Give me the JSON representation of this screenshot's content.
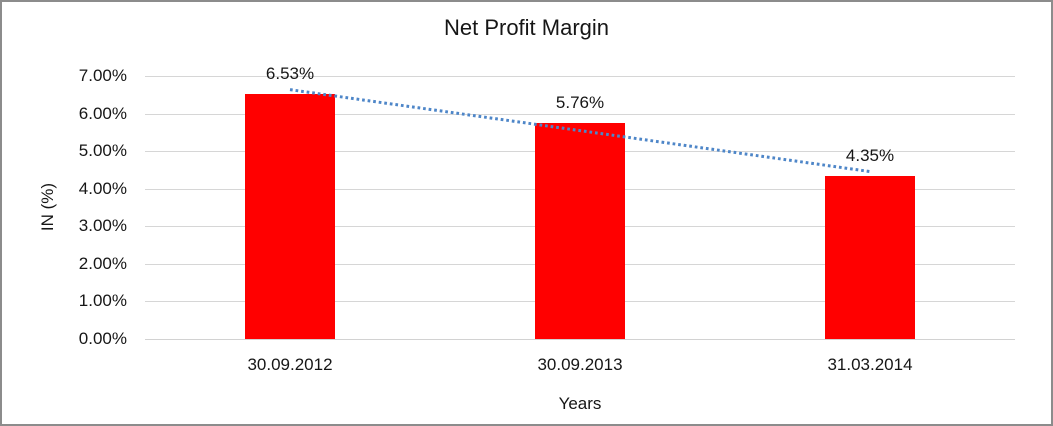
{
  "window": {
    "background_color": "#FFFFFF",
    "border_color": "#8C8C8C"
  },
  "chart_data": {
    "type": "bar",
    "title": "Net Profit Margin",
    "xlabel": "Years",
    "ylabel": "IN (%)",
    "categories": [
      "30.09.2012",
      "30.09.2013",
      "31.03.2014"
    ],
    "values": [
      6.53,
      5.76,
      4.35
    ],
    "data_labels": [
      "6.53%",
      "5.76%",
      "4.35%"
    ],
    "ylim": [
      0,
      7
    ],
    "ytick_labels": [
      "0.00%",
      "1.00%",
      "2.00%",
      "3.00%",
      "4.00%",
      "5.00%",
      "6.00%",
      "7.00%"
    ],
    "grid": true,
    "legend": "none",
    "bar_color": "#FF0000",
    "gridline_color": "#D6D6D6",
    "axisline_color": "#D2D2D2",
    "text_color": "#161616",
    "trendline": {
      "type": "linear",
      "style": "dotted",
      "color": "#4E86C8"
    }
  }
}
